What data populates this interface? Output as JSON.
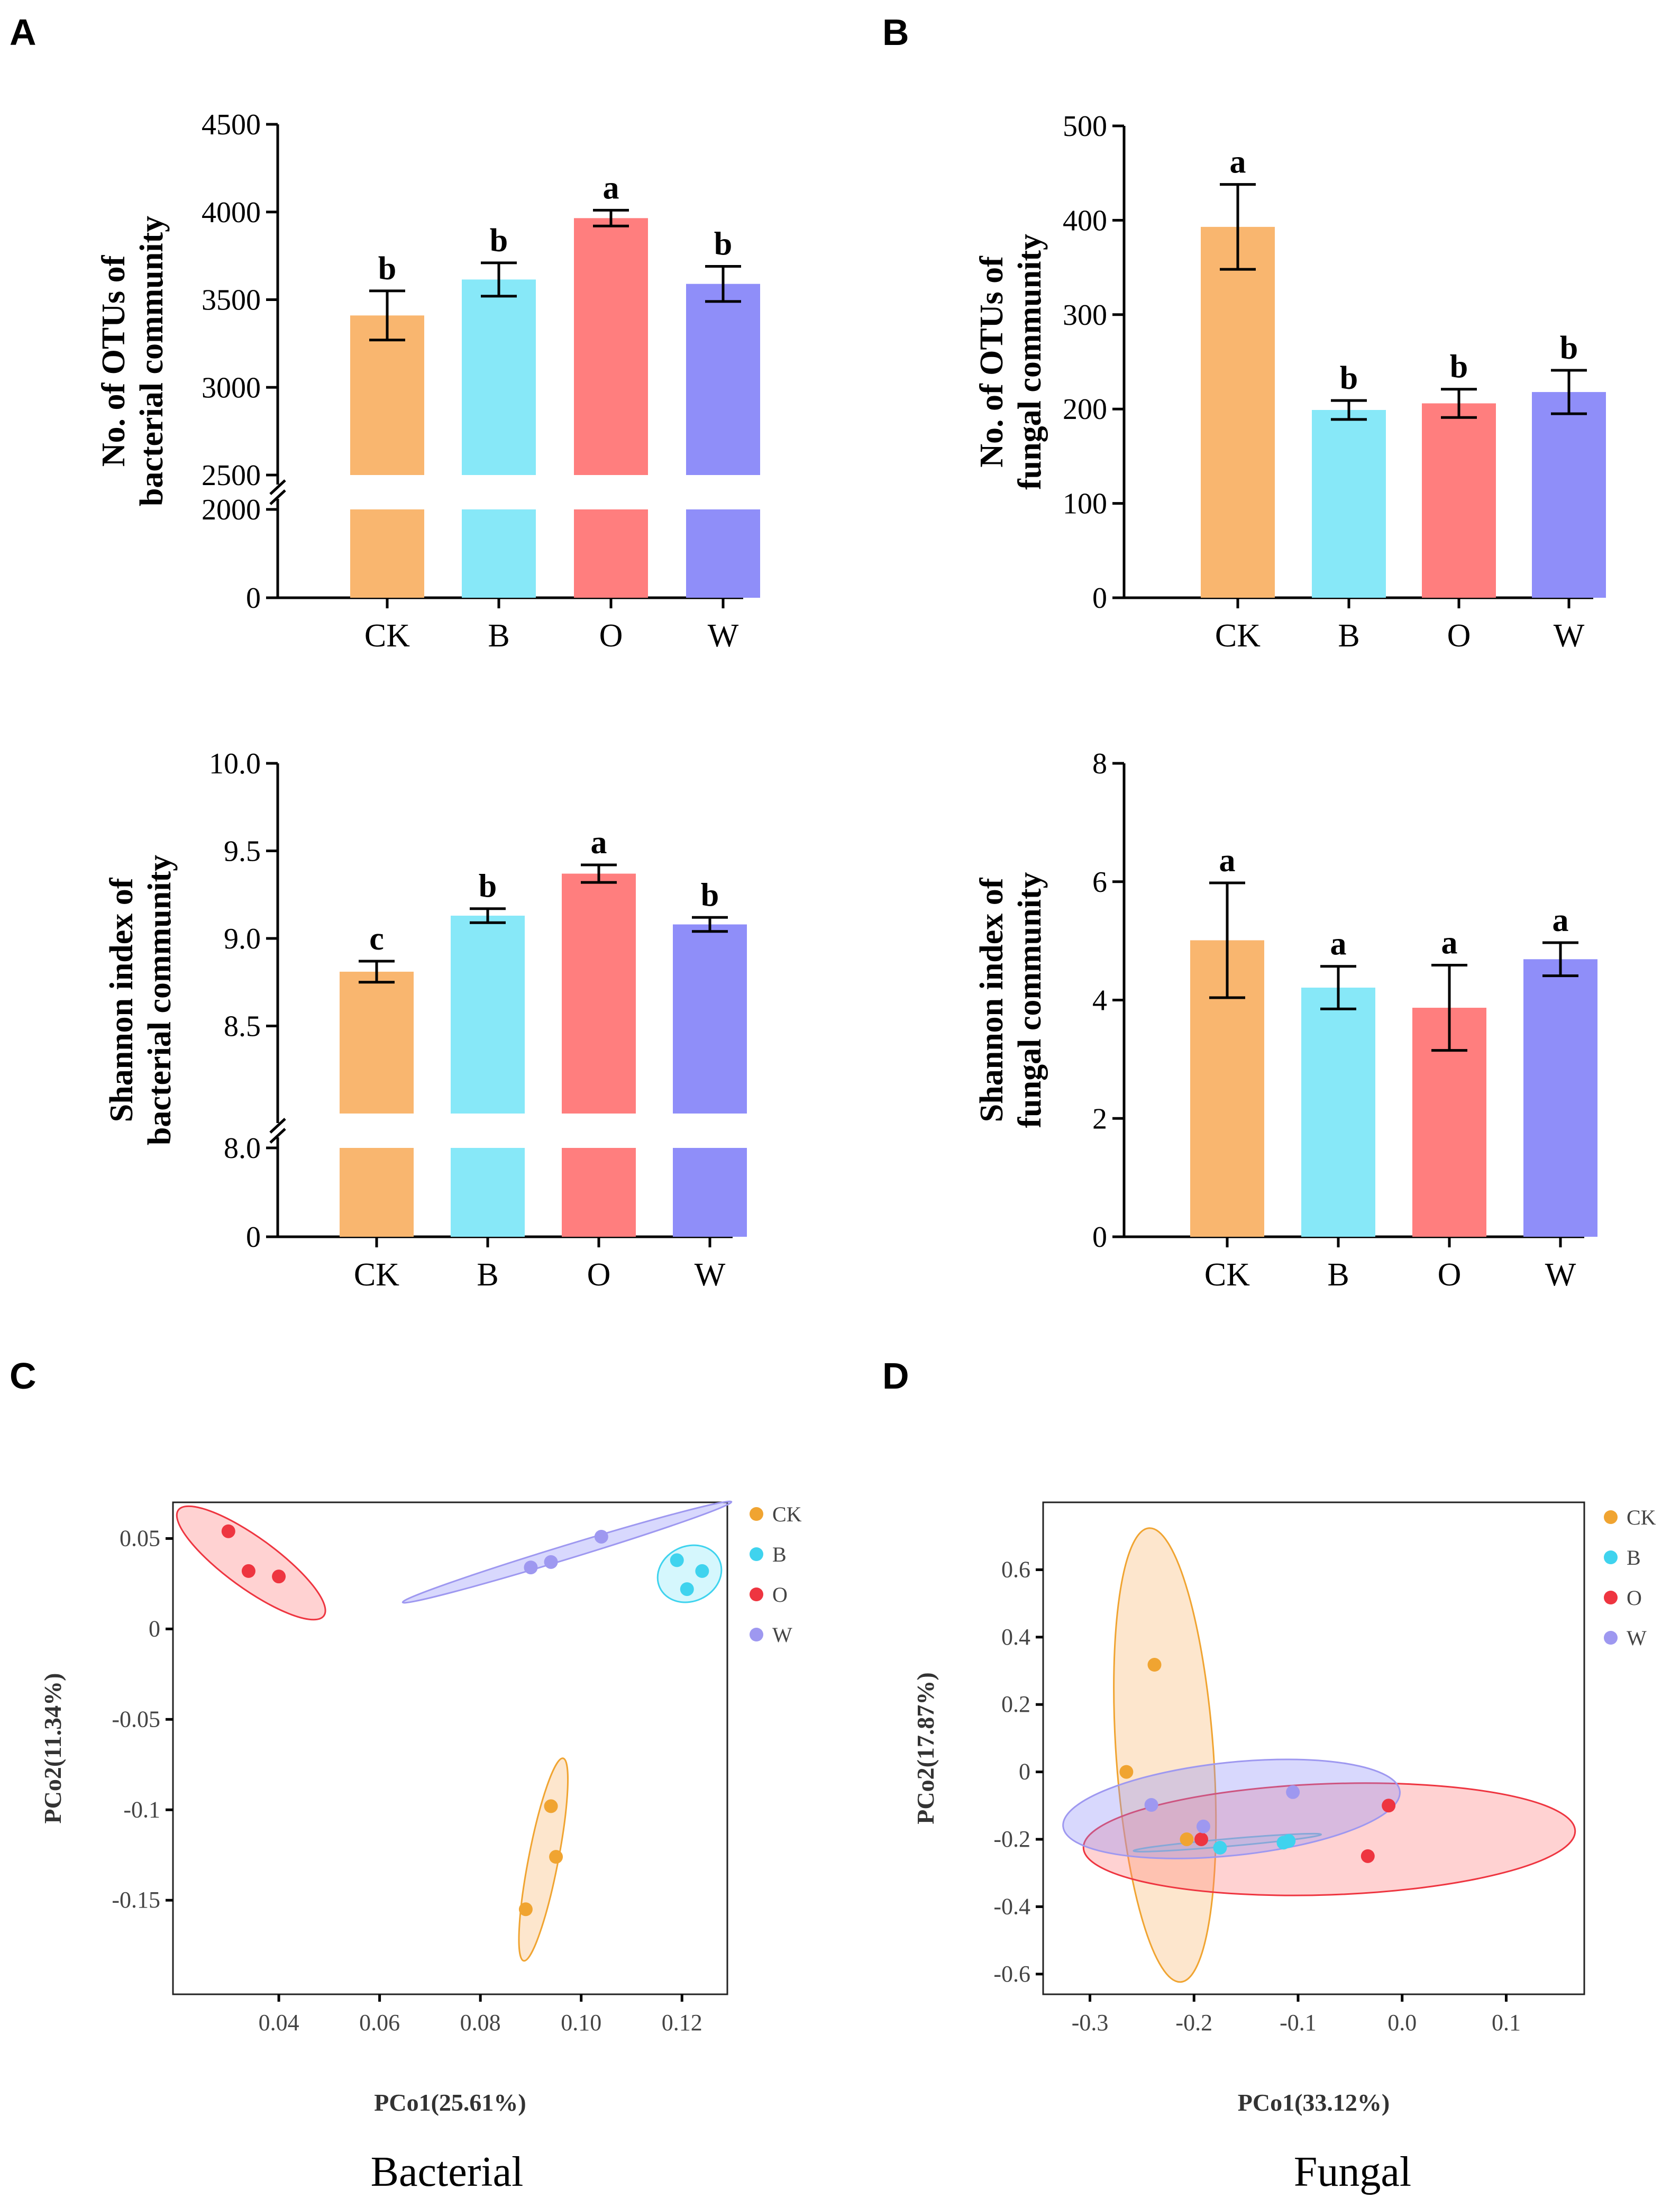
{
  "panels": {
    "A": "A",
    "B": "B",
    "C": "C",
    "D": "D"
  },
  "captions": {
    "left": "Bacterial",
    "right": "Fungal"
  },
  "colors": {
    "CK": "#F9B66F",
    "B": "#87E8F8",
    "O": "#FF7E7E",
    "W": "#8F8EF9",
    "CK_dot": "#F0A431",
    "B_dot": "#3FD3EE",
    "O_dot": "#EE3540",
    "W_dot": "#9E98F0"
  },
  "chart_data": [
    {
      "id": "A-top",
      "type": "bar",
      "ylabel": [
        "No. of OTUs of",
        "bacterial community"
      ],
      "categories": [
        "CK",
        "B",
        "O",
        "W"
      ],
      "values": [
        3410,
        3615,
        3965,
        3590
      ],
      "errors": [
        140,
        95,
        45,
        100
      ],
      "significance": [
        "b",
        "b",
        "a",
        "b"
      ],
      "axis_break": {
        "lower": [
          0,
          2000
        ],
        "upper": [
          2500,
          4500
        ]
      },
      "yticks": [
        "0",
        "2000",
        "2500",
        "3000",
        "3500",
        "4000",
        "4500"
      ]
    },
    {
      "id": "B-top",
      "type": "bar",
      "ylabel": [
        "No. of OTUs of",
        "fungal community"
      ],
      "categories": [
        "CK",
        "B",
        "O",
        "W"
      ],
      "values": [
        393,
        199,
        206,
        218
      ],
      "errors": [
        45,
        10,
        15,
        23
      ],
      "significance": [
        "a",
        "b",
        "b",
        "b"
      ],
      "ylim": [
        0,
        500
      ],
      "yticks": [
        "0",
        "100",
        "200",
        "300",
        "400",
        "500"
      ]
    },
    {
      "id": "A-bottom",
      "type": "bar",
      "ylabel": [
        "Shannon index of",
        "bacterial community"
      ],
      "categories": [
        "CK",
        "B",
        "O",
        "W"
      ],
      "values": [
        8.81,
        9.13,
        9.37,
        9.08
      ],
      "errors": [
        0.06,
        0.04,
        0.05,
        0.04
      ],
      "significance": [
        "c",
        "b",
        "a",
        "b"
      ],
      "axis_break": {
        "lower": [
          0,
          8.0
        ],
        "upper": [
          8.0,
          10.0
        ]
      },
      "yticks": [
        "0",
        "8.0",
        "8.5",
        "9.0",
        "9.5",
        "10.0"
      ]
    },
    {
      "id": "B-bottom",
      "type": "bar",
      "ylabel": [
        "Shannon index of",
        "fungal community"
      ],
      "categories": [
        "CK",
        "B",
        "O",
        "W"
      ],
      "values": [
        5.01,
        4.21,
        3.87,
        4.69
      ],
      "errors": [
        0.97,
        0.36,
        0.72,
        0.28
      ],
      "significance": [
        "a",
        "a",
        "a",
        "a"
      ],
      "ylim": [
        0,
        8
      ],
      "yticks": [
        "0",
        "2",
        "4",
        "6",
        "8"
      ]
    },
    {
      "id": "C",
      "type": "scatter",
      "title": "Bacterial",
      "xlabel": "PCo1(25.61%)",
      "ylabel": "PCo2(11.34%)",
      "xlim": [
        0.019,
        0.129
      ],
      "ylim": [
        -0.202,
        0.07
      ],
      "xticks": [
        "0.04",
        "0.06",
        "0.08",
        "0.10",
        "0.12"
      ],
      "yticks": [
        "0.05",
        "0",
        "-0.05",
        "-0.1",
        "-0.15"
      ],
      "series": [
        {
          "name": "CK",
          "points": [
            [
              0.094,
              -0.098
            ],
            [
              0.095,
              -0.126
            ],
            [
              0.089,
              -0.155
            ]
          ]
        },
        {
          "name": "B",
          "points": [
            [
              0.119,
              0.038
            ],
            [
              0.124,
              0.032
            ],
            [
              0.121,
              0.022
            ]
          ]
        },
        {
          "name": "O",
          "points": [
            [
              0.03,
              0.054
            ],
            [
              0.034,
              0.032
            ],
            [
              0.04,
              0.029
            ]
          ]
        },
        {
          "name": "W",
          "points": [
            [
              0.09,
              0.034
            ],
            [
              0.094,
              0.037
            ],
            [
              0.104,
              0.051
            ]
          ]
        }
      ],
      "legend": [
        "CK",
        "B",
        "O",
        "W"
      ]
    },
    {
      "id": "D",
      "type": "scatter",
      "title": "Fungal",
      "xlabel": "PCo1(33.12%)",
      "ylabel": "PCo2(17.87%)",
      "xlim": [
        -0.345,
        0.175
      ],
      "ylim": [
        -0.66,
        0.8
      ],
      "xticks": [
        "-0.3",
        "-0.2",
        "-0.1",
        "0.0",
        "0.1"
      ],
      "yticks": [
        "0.6",
        "0.4",
        "0.2",
        "0",
        "-0.2",
        "-0.4",
        "-0.6"
      ],
      "series": [
        {
          "name": "CK",
          "points": [
            [
              -0.238,
              0.318
            ],
            [
              -0.265,
              0.0
            ],
            [
              -0.207,
              -0.2
            ]
          ]
        },
        {
          "name": "B",
          "points": [
            [
              -0.175,
              -0.225
            ],
            [
              -0.114,
              -0.21
            ],
            [
              -0.109,
              -0.205
            ]
          ]
        },
        {
          "name": "O",
          "points": [
            [
              -0.193,
              -0.2
            ],
            [
              -0.033,
              -0.25
            ],
            [
              -0.013,
              -0.1
            ]
          ]
        },
        {
          "name": "W",
          "points": [
            [
              -0.241,
              -0.098
            ],
            [
              -0.191,
              -0.162
            ],
            [
              -0.105,
              -0.06
            ]
          ]
        }
      ],
      "legend": [
        "CK",
        "B",
        "O",
        "W"
      ]
    }
  ]
}
